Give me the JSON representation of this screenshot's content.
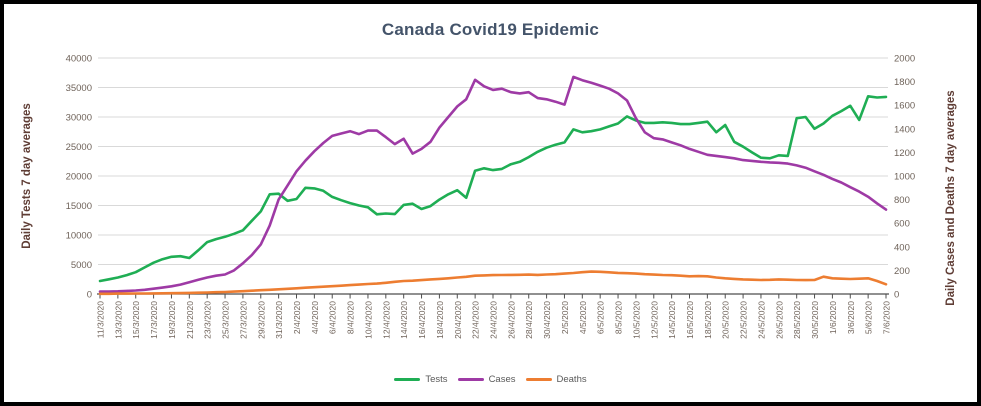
{
  "title": "Canada Covid19 Epidemic",
  "colors": {
    "title_text": "#44546A",
    "axis_title_text": "#5F3D35",
    "tick_label_text": "#6F635A",
    "gridline": "#D9D9D9",
    "axis_line": "#4D4D4D",
    "frame_border": "#000000",
    "background": "#FFFFFF",
    "tests_green": "#1FAE54",
    "cases_purple": "#9E3AA5",
    "deaths_orange": "#ED7D31"
  },
  "chart_data": {
    "type": "line",
    "title": "Canada Covid19 Epidemic",
    "grid": true,
    "legend_position": "bottom",
    "y_left": {
      "label": "Daily Tests 7 day averages",
      "min": 0,
      "max": 40000,
      "step": 5000
    },
    "y_right": {
      "label": "Daily Cases and Deaths 7 day averages",
      "min": 0,
      "max": 2000,
      "step": 200
    },
    "x": {
      "tick_every": 2,
      "dates": [
        "11/3/2020",
        "12/3/2020",
        "13/3/2020",
        "14/3/2020",
        "15/3/2020",
        "16/3/2020",
        "17/3/2020",
        "18/3/2020",
        "19/3/2020",
        "20/3/2020",
        "21/3/2020",
        "22/3/2020",
        "23/3/2020",
        "24/3/2020",
        "25/3/2020",
        "26/3/2020",
        "27/3/2020",
        "28/3/2020",
        "29/3/2020",
        "30/3/2020",
        "31/3/2020",
        "1/4/2020",
        "2/4/2020",
        "3/4/2020",
        "4/4/2020",
        "5/4/2020",
        "6/4/2020",
        "7/4/2020",
        "8/4/2020",
        "9/4/2020",
        "10/4/2020",
        "11/4/2020",
        "12/4/2020",
        "13/4/2020",
        "14/4/2020",
        "15/4/2020",
        "16/4/2020",
        "17/4/2020",
        "18/4/2020",
        "19/4/2020",
        "20/4/2020",
        "21/4/2020",
        "22/4/2020",
        "23/4/2020",
        "24/4/2020",
        "25/4/2020",
        "26/4/2020",
        "27/4/2020",
        "28/4/2020",
        "29/4/2020",
        "30/4/2020",
        "1/5/2020",
        "2/5/2020",
        "3/5/2020",
        "4/5/2020",
        "5/5/2020",
        "6/5/2020",
        "7/5/2020",
        "8/5/2020",
        "9/5/2020",
        "10/5/2020",
        "11/5/2020",
        "12/5/2020",
        "13/5/2020",
        "14/5/2020",
        "15/5/2020",
        "16/5/2020",
        "17/5/2020",
        "18/5/2020",
        "19/5/2020",
        "20/5/2020",
        "21/5/2020",
        "22/5/2020",
        "23/5/2020",
        "24/5/2020",
        "25/5/2020",
        "26/5/2020",
        "27/5/2020",
        "28/5/2020",
        "29/5/2020",
        "30/5/2020",
        "31/5/2020",
        "1/6/2020",
        "2/6/2020",
        "3/6/2020",
        "4/6/2020",
        "5/6/2020",
        "6/6/2020",
        "7/6/2020"
      ]
    },
    "series": [
      {
        "name": "Tests",
        "axis": "left",
        "color": "#1FAE54",
        "values": [
          2200,
          2500,
          2800,
          3200,
          3700,
          4500,
          5300,
          5900,
          6300,
          6400,
          6100,
          7400,
          8800,
          9300,
          9700,
          10200,
          10800,
          12400,
          14000,
          16900,
          17000,
          15800,
          16100,
          18000,
          17900,
          17500,
          16450,
          15900,
          15400,
          15000,
          14700,
          13500,
          13650,
          13550,
          15100,
          15300,
          14400,
          14900,
          16000,
          16900,
          17600,
          16300,
          20900,
          21300,
          21000,
          21200,
          22000,
          22400,
          23200,
          24100,
          24800,
          25300,
          25700,
          27900,
          27400,
          27600,
          27900,
          28400,
          28900,
          30100,
          29400,
          29000,
          29000,
          29100,
          29000,
          28800,
          28800,
          29000,
          29200,
          27400,
          28650,
          25800,
          24970,
          24000,
          23100,
          23000,
          23500,
          23400,
          29800,
          30000,
          28000,
          28900,
          30200,
          31000,
          31900,
          29500,
          33500,
          33300,
          33400
        ]
      },
      {
        "name": "Cases",
        "axis": "right",
        "color": "#9E3AA5",
        "values": [
          20,
          21,
          23,
          26,
          30,
          36,
          45,
          54,
          65,
          80,
          100,
          120,
          140,
          155,
          165,
          200,
          260,
          330,
          420,
          580,
          800,
          920,
          1040,
          1130,
          1210,
          1280,
          1340,
          1360,
          1380,
          1355,
          1385,
          1385,
          1330,
          1270,
          1315,
          1190,
          1230,
          1290,
          1410,
          1500,
          1590,
          1650,
          1815,
          1760,
          1730,
          1740,
          1710,
          1700,
          1710,
          1660,
          1650,
          1630,
          1605,
          1840,
          1812,
          1790,
          1766,
          1740,
          1700,
          1640,
          1490,
          1370,
          1320,
          1310,
          1285,
          1260,
          1230,
          1205,
          1180,
          1170,
          1160,
          1150,
          1135,
          1128,
          1120,
          1115,
          1112,
          1105,
          1090,
          1070,
          1040,
          1010,
          975,
          945,
          905,
          868,
          825,
          768,
          715
        ]
      },
      {
        "name": "Deaths",
        "axis": "right",
        "color": "#ED7D31",
        "values": [
          2,
          2,
          3,
          3,
          4,
          4,
          5,
          6,
          7,
          8,
          9,
          11,
          13,
          15,
          17,
          20,
          24,
          28,
          32,
          36,
          40,
          44,
          48,
          53,
          58,
          62,
          66,
          70,
          75,
          80,
          85,
          88,
          95,
          103,
          110,
          113,
          118,
          124,
          128,
          133,
          140,
          146,
          155,
          158,
          160,
          161,
          162,
          163,
          164,
          162,
          165,
          168,
          173,
          178,
          185,
          190,
          188,
          184,
          179,
          176,
          173,
          168,
          164,
          161,
          159,
          155,
          150,
          152,
          150,
          140,
          133,
          128,
          124,
          121,
          119,
          120,
          124,
          121,
          119,
          118,
          119,
          147,
          133,
          130,
          127,
          130,
          133,
          110,
          82
        ]
      }
    ]
  }
}
